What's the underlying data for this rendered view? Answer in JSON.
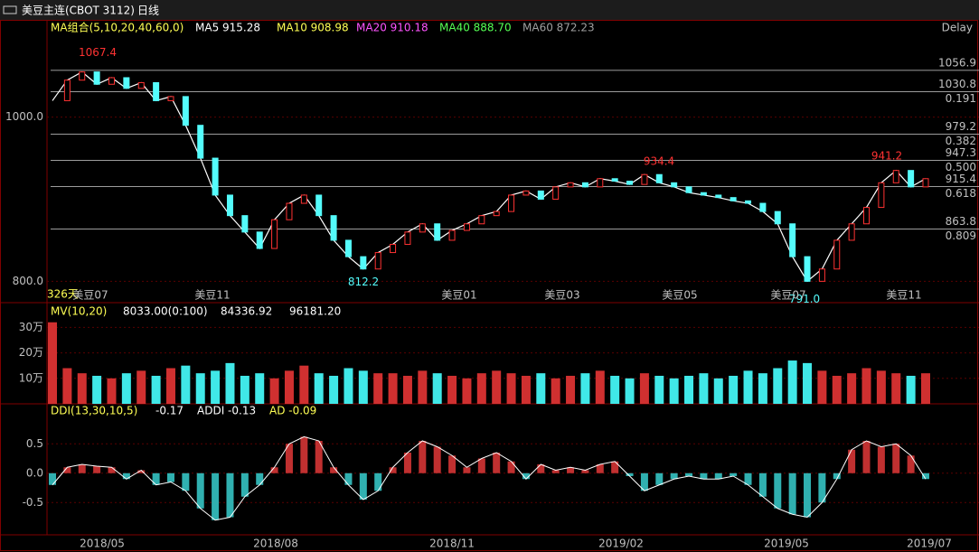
{
  "header": {
    "symbol": "美豆主连(CBOT 3112)",
    "period": "日线",
    "status": "Delay"
  },
  "chart_data": [
    {
      "type": "line",
      "legend_title": "MA组合(5,10,20,40,60,0)",
      "legend": [
        {
          "text": "MA5 915.28",
          "color": "#ffffff"
        },
        {
          "text": "MA10 908.98",
          "color": "#ffff54"
        },
        {
          "text": "MA20 910.18",
          "color": "#ff54ff"
        },
        {
          "text": "MA40 888.70",
          "color": "#54ff54"
        },
        {
          "text": "MA60 872.23",
          "color": "#a0a0a0"
        }
      ],
      "color": "#ffffff",
      "values": [
        1020,
        1045,
        1055,
        1040,
        1048,
        1035,
        1042,
        1020,
        1025,
        990,
        950,
        905,
        880,
        860,
        840,
        875,
        895,
        905,
        880,
        850,
        830,
        815,
        835,
        845,
        860,
        870,
        850,
        862,
        870,
        880,
        885,
        905,
        910,
        900,
        915,
        920,
        915,
        925,
        922,
        918,
        930,
        920,
        915,
        908,
        905,
        902,
        898,
        895,
        885,
        870,
        830,
        800,
        815,
        850,
        870,
        890,
        920,
        935,
        915,
        925
      ],
      "ylim": [
        774,
        1103
      ],
      "yticks": [
        {
          "value": 1000,
          "label": "1000.0"
        },
        {
          "value": 800,
          "label": "800.0"
        }
      ],
      "levels": [
        {
          "price": 1056.9
        },
        {
          "price": 1030.8,
          "ratio": 0.191
        },
        {
          "price": 979.2,
          "ratio": 0.382
        },
        {
          "price": 947.3,
          "ratio": {
            "value": 0.5,
            "label": "0.500"
          }
        },
        {
          "price": 915.4,
          "ratio": 0.618
        },
        {
          "price": 863.8,
          "ratio": 0.809
        }
      ],
      "annotations": [
        1067.4,
        812.2,
        934.4,
        941.2,
        {
          "value": 791,
          "label": "791.0"
        }
      ],
      "day_count": "326天",
      "contracts": [
        "美豆07",
        "美豆11",
        "美豆01",
        "美豆03",
        "美豆05",
        "美豆07",
        "美豆11"
      ]
    },
    {
      "type": "bar",
      "legend": [
        "MV(10,20)",
        "8033.00(0:100)",
        "84336.92",
        "96181.20"
      ],
      "values": [
        32,
        14,
        12,
        11,
        10,
        12,
        13,
        11,
        14,
        15,
        12,
        13,
        16,
        11,
        12,
        10,
        13,
        15,
        12,
        11,
        14,
        13,
        12,
        12,
        11,
        13,
        12,
        11,
        10,
        12,
        13,
        12,
        11,
        12,
        10,
        11,
        12,
        13,
        11,
        10,
        12,
        11,
        10,
        11,
        12,
        10,
        11,
        13,
        12,
        14,
        17,
        16,
        13,
        11,
        12,
        14,
        13,
        12,
        11,
        12
      ],
      "ylim": [
        0,
        39
      ],
      "yticks": [
        {
          "value": 10,
          "label": "10万"
        },
        {
          "value": 20,
          "label": "20万"
        },
        {
          "value": 30,
          "label": "30万"
        }
      ]
    },
    {
      "type": "histogram",
      "legend": [
        "DDI(13,30,10,5)",
        "-0.17",
        "ADDI -0.13",
        "AD -0.09"
      ],
      "values": [
        -0.2,
        0.1,
        0.15,
        0.12,
        0.1,
        -0.1,
        0.05,
        -0.2,
        -0.15,
        -0.3,
        -0.6,
        -0.8,
        -0.75,
        -0.4,
        -0.2,
        0.1,
        0.5,
        0.62,
        0.55,
        0.1,
        -0.2,
        -0.45,
        -0.3,
        0.1,
        0.35,
        0.55,
        0.45,
        0.3,
        0.1,
        0.25,
        0.35,
        0.2,
        -0.1,
        0.15,
        0.05,
        0.1,
        0.05,
        0.15,
        0.2,
        -0.05,
        -0.3,
        -0.2,
        -0.1,
        -0.05,
        -0.1,
        -0.1,
        -0.05,
        -0.2,
        -0.4,
        -0.6,
        -0.7,
        -0.75,
        -0.5,
        -0.1,
        0.4,
        0.55,
        0.45,
        0.5,
        0.3,
        -0.1
      ],
      "ylim": [
        -1.05,
        1.15
      ],
      "yticks": [
        0.5,
        {
          "value": 0,
          "label": "0.0"
        },
        -0.5
      ],
      "dates": [
        "2018/05",
        "2018/08",
        "2018/11",
        "2019/02",
        "2019/05",
        "2019/07"
      ]
    }
  ]
}
